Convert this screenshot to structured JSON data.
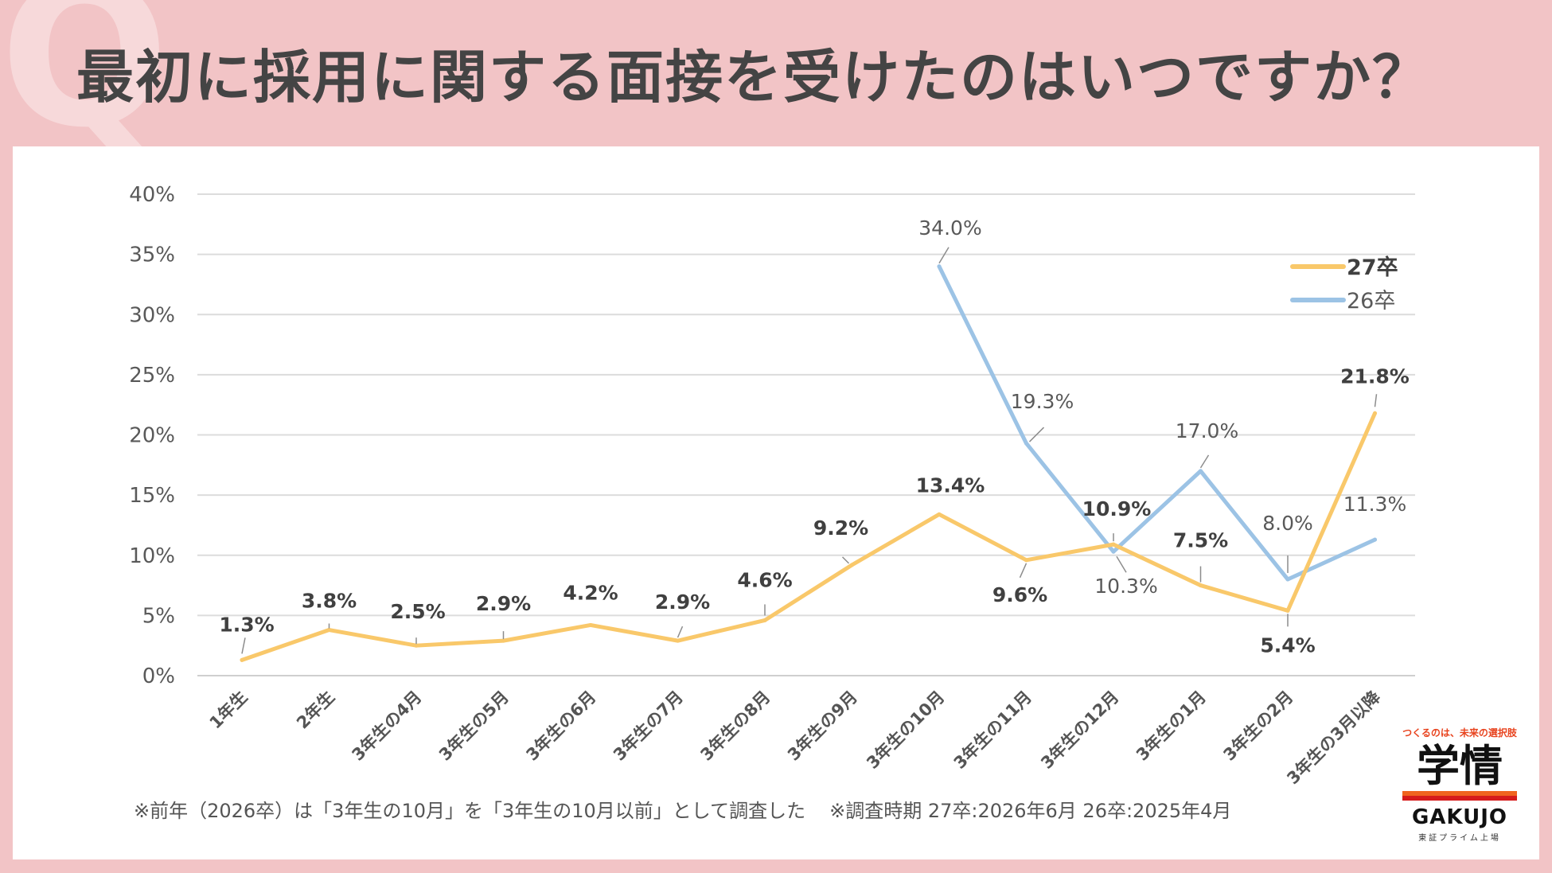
{
  "page": {
    "title": "最初に採用に関する面接を受けたのはいつですか？",
    "q_letter": "Q",
    "footnote_1": "※前年（2026卒）は「3年生の10月」を「3年生の10月以前」として調査した",
    "footnote_2": "※調査時期  27卒:2026年6月  26卒:2025年4月",
    "colors": {
      "background": "#f2c4c6",
      "panel": "#ffffff",
      "series_27": "#f9c86a",
      "series_26": "#9cc3e5"
    }
  },
  "logo": {
    "tagline": "つくるのは、未来の選択肢",
    "name": "学情",
    "name_en": "GAKUJO",
    "subtitle": "東証プライム上場"
  },
  "chart_data": {
    "type": "line",
    "title": "",
    "xlabel": "",
    "ylabel": "",
    "ylim": [
      0,
      40
    ],
    "yticks": [
      "0%",
      "5%",
      "10%",
      "15%",
      "20%",
      "25%",
      "30%",
      "35%",
      "40%"
    ],
    "grid": true,
    "legend_position": "top-right",
    "categories": [
      "1年生",
      "2年生",
      "3年生の4月",
      "3年生の5月",
      "3年生の6月",
      "3年生の7月",
      "3年生の8月",
      "3年生の9月",
      "3年生の10月",
      "3年生の11月",
      "3年生の12月",
      "3年生の1月",
      "3年生の2月",
      "3年生の3月以降"
    ],
    "series": [
      {
        "name": "27卒",
        "color": "#f9c86a",
        "bold": true,
        "values": [
          1.3,
          3.8,
          2.5,
          2.9,
          4.2,
          2.9,
          4.6,
          9.2,
          13.4,
          9.6,
          10.9,
          7.5,
          5.4,
          21.8
        ],
        "labels": [
          "1.3%",
          "3.8%",
          "2.5%",
          "2.9%",
          "4.2%",
          "2.9%",
          "4.6%",
          "9.2%",
          "13.4%",
          "9.6%",
          "10.9%",
          "7.5%",
          "5.4%",
          "21.8%"
        ]
      },
      {
        "name": "26卒",
        "color": "#9cc3e5",
        "bold": false,
        "values": [
          null,
          null,
          null,
          null,
          null,
          null,
          null,
          null,
          34.0,
          19.3,
          10.3,
          17.0,
          8.0,
          11.3
        ],
        "labels": [
          null,
          null,
          null,
          null,
          null,
          null,
          null,
          null,
          "34.0%",
          "19.3%",
          "10.3%",
          "17.0%",
          "8.0%",
          "11.3%"
        ]
      }
    ]
  }
}
